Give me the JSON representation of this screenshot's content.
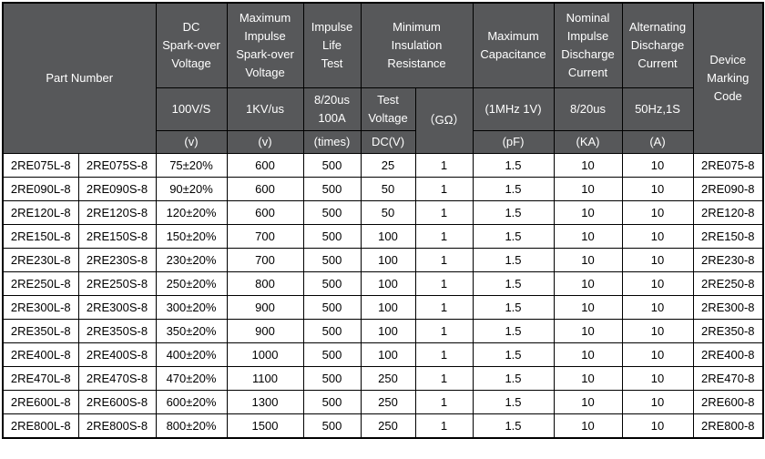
{
  "colors": {
    "header_bg": "#57585a",
    "header_text": "#ffffff",
    "border": "#000000",
    "row_bg": "#ffffff",
    "row_text": "#000000"
  },
  "table": {
    "header": {
      "part_number": "Part Number",
      "col_dc": {
        "title": "DC\nSpark-over\nVoltage",
        "condition": "100V/S",
        "unit": "(v)"
      },
      "col_max_impulse": {
        "title": "Maximum\nImpulse\nSpark-over\nVoltage",
        "condition": "1KV/us",
        "unit": "(v)"
      },
      "col_life": {
        "title": "Impulse\nLife\nTest",
        "condition": "8/20us\n100A",
        "unit": "(times)"
      },
      "col_insulation": {
        "title": "Minimum\nInsulation\nResistance",
        "sub_test_voltage": "Test\nVoltage",
        "sub_test_voltage_unit": "DC(V)",
        "sub_resistance": "（GΩ）"
      },
      "col_capacitance": {
        "title": "Maximum\nCapacitance",
        "condition": "(1MHz 1V)",
        "unit": "(pF)"
      },
      "col_nominal": {
        "title": "Nominal\nImpulse\nDischarge\nCurrent",
        "condition": "8/20us",
        "unit": "(KA)"
      },
      "col_ac": {
        "title": "Alternating\nDischarge\nCurrent",
        "condition": "50Hz,1S",
        "unit": "(A)"
      },
      "col_marking": "Device\nMarking\nCode"
    },
    "rows": [
      [
        "2RE075L-8",
        "2RE075S-8",
        "75±20%",
        "600",
        "500",
        "25",
        "1",
        "1.5",
        "10",
        "10",
        "2RE075-8"
      ],
      [
        "2RE090L-8",
        "2RE090S-8",
        "90±20%",
        "600",
        "500",
        "50",
        "1",
        "1.5",
        "10",
        "10",
        "2RE090-8"
      ],
      [
        "2RE120L-8",
        "2RE120S-8",
        "120±20%",
        "600",
        "500",
        "50",
        "1",
        "1.5",
        "10",
        "10",
        "2RE120-8"
      ],
      [
        "2RE150L-8",
        "2RE150S-8",
        "150±20%",
        "700",
        "500",
        "100",
        "1",
        "1.5",
        "10",
        "10",
        "2RE150-8"
      ],
      [
        "2RE230L-8",
        "2RE230S-8",
        "230±20%",
        "700",
        "500",
        "100",
        "1",
        "1.5",
        "10",
        "10",
        "2RE230-8"
      ],
      [
        "2RE250L-8",
        "2RE250S-8",
        "250±20%",
        "800",
        "500",
        "100",
        "1",
        "1.5",
        "10",
        "10",
        "2RE250-8"
      ],
      [
        "2RE300L-8",
        "2RE300S-8",
        "300±20%",
        "900",
        "500",
        "100",
        "1",
        "1.5",
        "10",
        "10",
        "2RE300-8"
      ],
      [
        "2RE350L-8",
        "2RE350S-8",
        "350±20%",
        "900",
        "500",
        "100",
        "1",
        "1.5",
        "10",
        "10",
        "2RE350-8"
      ],
      [
        "2RE400L-8",
        "2RE400S-8",
        "400±20%",
        "1000",
        "500",
        "100",
        "1",
        "1.5",
        "10",
        "10",
        "2RE400-8"
      ],
      [
        "2RE470L-8",
        "2RE470S-8",
        "470±20%",
        "1100",
        "500",
        "250",
        "1",
        "1.5",
        "10",
        "10",
        "2RE470-8"
      ],
      [
        "2RE600L-8",
        "2RE600S-8",
        "600±20%",
        "1300",
        "500",
        "250",
        "1",
        "1.5",
        "10",
        "10",
        "2RE600-8"
      ],
      [
        "2RE800L-8",
        "2RE800S-8",
        "800±20%",
        "1500",
        "500",
        "250",
        "1",
        "1.5",
        "10",
        "10",
        "2RE800-8"
      ]
    ]
  }
}
